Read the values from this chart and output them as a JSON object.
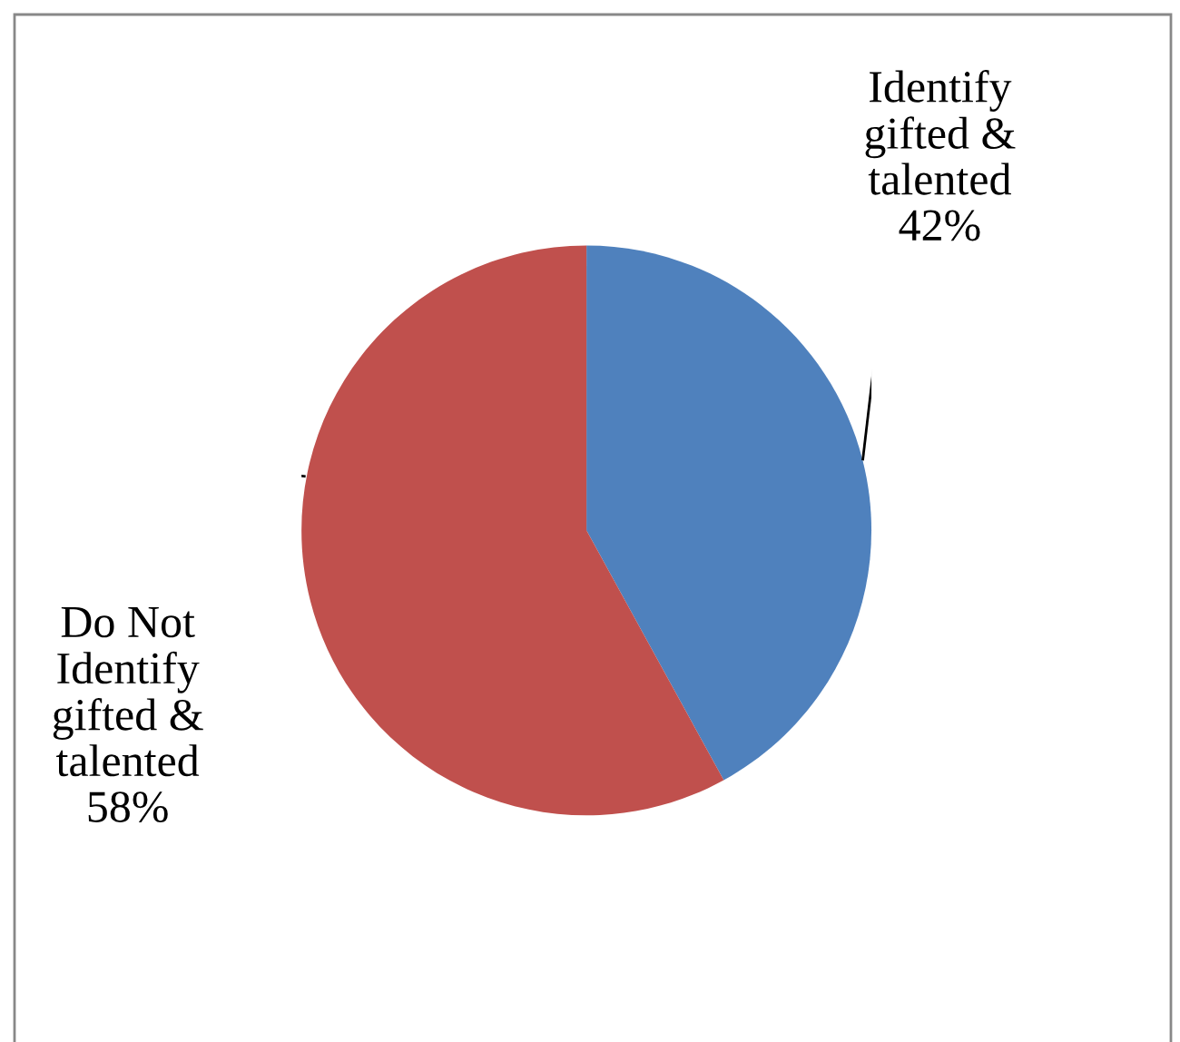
{
  "chart_data": {
    "type": "pie",
    "categories": [
      "Identify gifted & talented",
      "Do Not Identify gifted & talented"
    ],
    "values": [
      42,
      58
    ],
    "colors": [
      "#4f81bd",
      "#c0504d"
    ],
    "value_labels": [
      "42%",
      "58%"
    ]
  }
}
